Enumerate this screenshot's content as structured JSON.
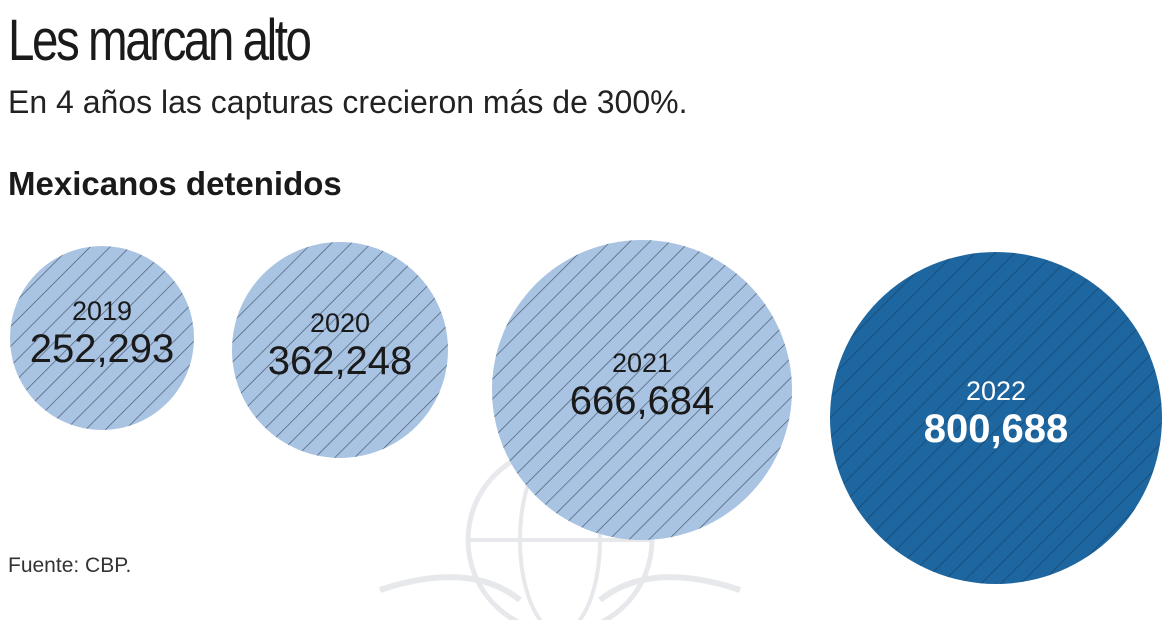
{
  "header": {
    "title": "Les marcan alto",
    "subtitle": "En 4 años las capturas crecieron más de 300%.",
    "section_title": "Mexicanos detenidos"
  },
  "source": "Fuente: CBP.",
  "colors": {
    "light_bubble": "#a9c3e3",
    "highlight_bubble": "#1e66a0",
    "hatch": "#3a4a5c",
    "dark_text": "#1a1a1a",
    "highlight_text": "#ffffff"
  },
  "chart_data": {
    "type": "bubble",
    "title": "Mexicanos detenidos",
    "categories": [
      "2019",
      "2020",
      "2021",
      "2022"
    ],
    "values": [
      252293,
      362248,
      666684,
      800688
    ],
    "labels": [
      "252,293",
      "362,248",
      "666,684",
      "800,688"
    ],
    "highlight": "2022"
  }
}
